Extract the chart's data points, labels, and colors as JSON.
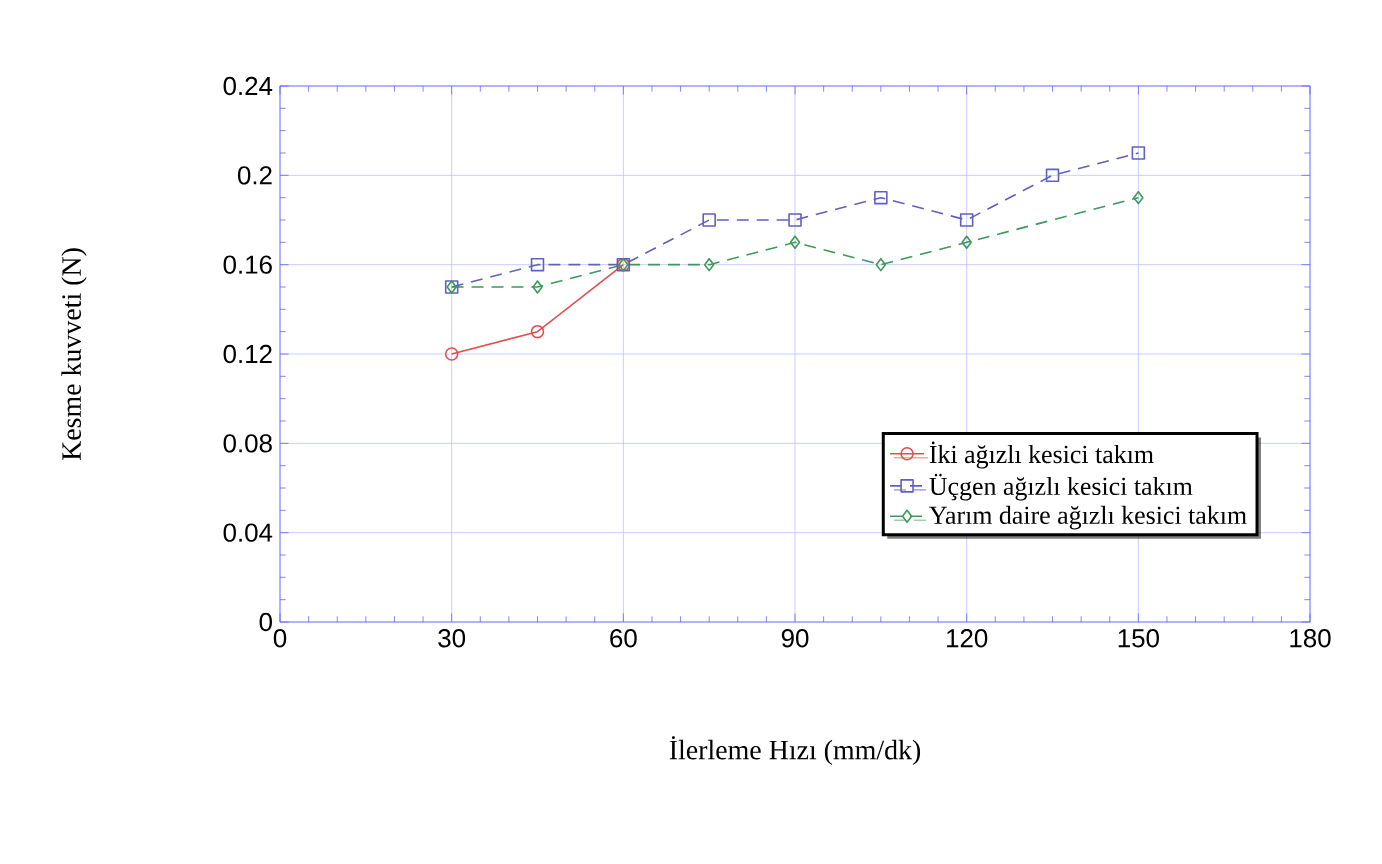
{
  "chart_data": {
    "type": "line",
    "xlabel": "İlerleme Hızı (mm/dk)",
    "ylabel": "Kesme kuvveti (N)",
    "xlim": [
      0,
      180
    ],
    "xticks": [
      0,
      30,
      60,
      90,
      120,
      150,
      180
    ],
    "ylim": [
      0,
      0.24
    ],
    "yticks": [
      0,
      0.04,
      0.08,
      0.12,
      0.16,
      0.2,
      0.24
    ],
    "grid": true,
    "legend": "bottom right",
    "series": [
      {
        "name": "İki ağızlı kesici takım",
        "color": "#e05050",
        "marker": "circle",
        "line_style": "solid",
        "x": [
          30,
          45,
          60
        ],
        "values": [
          0.12,
          0.13,
          0.16
        ]
      },
      {
        "name": "Üçgen ağızlı kesici takım",
        "color": "#6060c0",
        "marker": "square",
        "line_style": "dashed",
        "x": [
          30,
          45,
          60,
          75,
          90,
          105,
          120,
          135,
          150
        ],
        "values": [
          0.15,
          0.16,
          0.16,
          0.18,
          0.18,
          0.19,
          0.18,
          0.2,
          0.21
        ]
      },
      {
        "name": "Yarım daire ağızlı kesici takım",
        "color": "#3a9a5a",
        "marker": "diamond",
        "line_style": "dashed",
        "x": [
          30,
          45,
          60,
          75,
          90,
          105,
          120,
          150
        ],
        "values": [
          0.15,
          0.15,
          0.16,
          0.16,
          0.17,
          0.16,
          0.17,
          0.19
        ]
      }
    ]
  }
}
